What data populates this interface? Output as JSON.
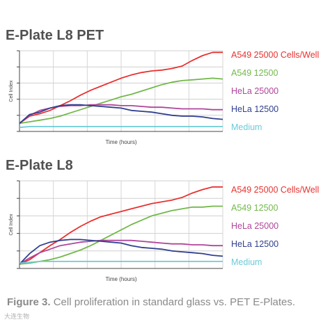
{
  "figure": {
    "caption_label": "Figure 3.",
    "caption_text": "Cell proliferation in standard glass vs. PET E-Plates.",
    "watermark": "大连生物"
  },
  "colors": {
    "A549 25000 Cells/Well": "#e8312f",
    "A549 12500": "#72b84a",
    "HeLa 25000": "#b0459a",
    "HeLa 12500": "#2f3f8e",
    "Medium": "#6ccbd8"
  },
  "chart_data": [
    {
      "type": "line",
      "title": "E-Plate L8 PET",
      "xlabel": "Time (hours)",
      "ylabel": "Cell Index",
      "grid": true,
      "legend": "right",
      "x": [
        0,
        0.05,
        0.1,
        0.15,
        0.2,
        0.25,
        0.3,
        0.35,
        0.4,
        0.45,
        0.5,
        0.55,
        0.6,
        0.65,
        0.7,
        0.75,
        0.8,
        0.85,
        0.9,
        0.95,
        1.0
      ],
      "series": [
        {
          "name": "A549 25000 Cells/Well",
          "values": [
            0.1,
            0.19,
            0.22,
            0.26,
            0.32,
            0.38,
            0.45,
            0.51,
            0.56,
            0.61,
            0.66,
            0.7,
            0.73,
            0.75,
            0.76,
            0.78,
            0.81,
            0.88,
            0.94,
            0.98,
            0.98
          ]
        },
        {
          "name": "A549 12500",
          "values": [
            0.1,
            0.12,
            0.14,
            0.16,
            0.19,
            0.23,
            0.27,
            0.31,
            0.35,
            0.39,
            0.43,
            0.46,
            0.5,
            0.54,
            0.58,
            0.61,
            0.63,
            0.64,
            0.65,
            0.66,
            0.65
          ]
        },
        {
          "name": "HeLa 25000",
          "values": [
            0.1,
            0.2,
            0.26,
            0.29,
            0.31,
            0.32,
            0.32,
            0.33,
            0.33,
            0.33,
            0.32,
            0.32,
            0.31,
            0.3,
            0.3,
            0.29,
            0.28,
            0.28,
            0.28,
            0.27,
            0.27
          ]
        },
        {
          "name": "HeLa 12500",
          "values": [
            0.1,
            0.21,
            0.24,
            0.29,
            0.32,
            0.33,
            0.33,
            0.32,
            0.31,
            0.3,
            0.29,
            0.26,
            0.25,
            0.24,
            0.22,
            0.2,
            0.19,
            0.19,
            0.18,
            0.16,
            0.15
          ]
        },
        {
          "name": "Medium",
          "values": [
            0.05,
            0.06,
            0.06,
            0.06,
            0.06,
            0.06,
            0.06,
            0.06,
            0.06,
            0.06,
            0.06,
            0.06,
            0.06,
            0.06,
            0.06,
            0.06,
            0.06,
            0.06,
            0.06,
            0.06,
            0.06
          ]
        }
      ]
    },
    {
      "type": "line",
      "title": "E-Plate L8",
      "xlabel": "Time (hours)",
      "ylabel": "Cell Index",
      "grid": true,
      "legend": "right",
      "x": [
        0,
        0.05,
        0.1,
        0.15,
        0.2,
        0.25,
        0.3,
        0.35,
        0.4,
        0.45,
        0.5,
        0.55,
        0.6,
        0.65,
        0.7,
        0.75,
        0.8,
        0.85,
        0.9,
        0.95,
        1.0
      ],
      "series": [
        {
          "name": "A549 25000 Cells/Well",
          "values": [
            0.05,
            0.1,
            0.18,
            0.26,
            0.33,
            0.41,
            0.48,
            0.54,
            0.59,
            0.62,
            0.65,
            0.68,
            0.71,
            0.74,
            0.76,
            0.78,
            0.81,
            0.86,
            0.9,
            0.93,
            0.93
          ]
        },
        {
          "name": "A549 12500",
          "values": [
            0.05,
            0.06,
            0.08,
            0.1,
            0.13,
            0.17,
            0.21,
            0.26,
            0.32,
            0.38,
            0.44,
            0.5,
            0.55,
            0.6,
            0.63,
            0.66,
            0.68,
            0.7,
            0.7,
            0.71,
            0.71
          ]
        },
        {
          "name": "HeLa 25000",
          "values": [
            0.05,
            0.12,
            0.18,
            0.22,
            0.26,
            0.28,
            0.3,
            0.31,
            0.32,
            0.32,
            0.32,
            0.32,
            0.31,
            0.3,
            0.29,
            0.28,
            0.28,
            0.27,
            0.27,
            0.26,
            0.26
          ]
        },
        {
          "name": "HeLa 12500",
          "values": [
            0.05,
            0.17,
            0.26,
            0.3,
            0.32,
            0.33,
            0.33,
            0.32,
            0.31,
            0.3,
            0.29,
            0.26,
            0.24,
            0.23,
            0.22,
            0.2,
            0.19,
            0.18,
            0.17,
            0.15,
            0.14
          ]
        },
        {
          "name": "Medium",
          "values": [
            0.06,
            0.07,
            0.08,
            0.08,
            0.08,
            0.08,
            0.08,
            0.08,
            0.08,
            0.08,
            0.08,
            0.08,
            0.08,
            0.08,
            0.08,
            0.08,
            0.08,
            0.08,
            0.08,
            0.08,
            0.08
          ]
        }
      ]
    }
  ]
}
